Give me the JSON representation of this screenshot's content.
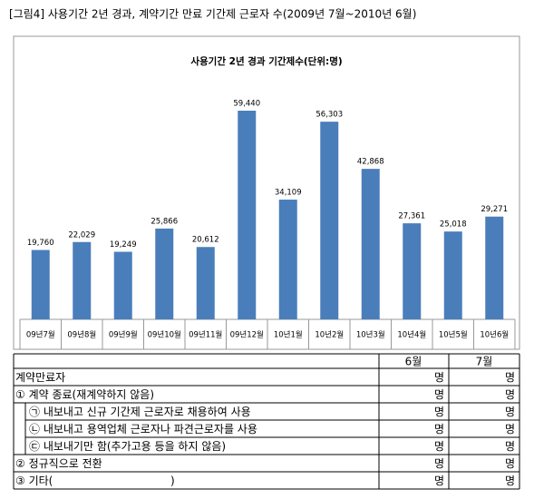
{
  "caption": "[그림4] 사용기간 2년 경과, 계약기간 만료 기간제 근로자 수(2009년 7월~2010년 6월)",
  "chart_data": {
    "type": "bar",
    "title": "사용기간 2년 경과 기간제수(단위:명)",
    "categories": [
      "09년7월",
      "09년8월",
      "09년9월",
      "09년10월",
      "09년11월",
      "09년12월",
      "10년1월",
      "10년2월",
      "10년3월",
      "10년4월",
      "10년5월",
      "10년6월"
    ],
    "values": [
      19760,
      22029,
      19249,
      25866,
      20612,
      59440,
      34109,
      56303,
      42868,
      27361,
      25018,
      29271
    ],
    "value_labels": [
      "19,760",
      "22,029",
      "19,249",
      "25,866",
      "20,612",
      "59,440",
      "34,109",
      "56,303",
      "42,868",
      "27,361",
      "25,018",
      "29,271"
    ],
    "color": "#4a7ebb"
  },
  "table": {
    "columns": [
      "6월",
      "7월"
    ],
    "rows": [
      {
        "label": "계약만료자",
        "cells": [
          "명",
          "명"
        ]
      },
      {
        "label": "① 계약 종료(재계약하지 않음)",
        "cells": [
          "명",
          "명"
        ],
        "subrows": [
          {
            "label": "㉠ 내보내고 신규 기간제 근로자로 채용하여 사용",
            "cells": [
              "명",
              "명"
            ]
          },
          {
            "label": "㉡ 내보내고 용역업체 근로자나 파견근로자를 사용",
            "cells": [
              "명",
              "명"
            ]
          },
          {
            "label": "㉢ 내보내기만 함(추가고용 등을 하지 않음)",
            "cells": [
              "명",
              "명"
            ]
          }
        ]
      },
      {
        "label": "② 정규직으로 전환",
        "cells": [
          "명",
          "명"
        ]
      },
      {
        "label": "③ 기타(                                  )",
        "cells": [
          "명",
          "명"
        ]
      }
    ]
  }
}
